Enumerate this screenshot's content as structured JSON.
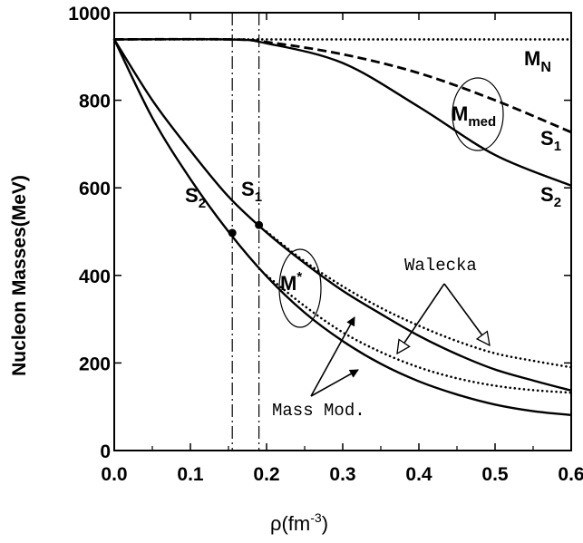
{
  "chart_data": {
    "type": "line",
    "title": "",
    "xlabel": "ρ(fm-3)",
    "xlabel_main": "ρ(fm",
    "xlabel_sup": "-3",
    "xlabel_close": ")",
    "ylabel": "Nucleon Masses(MeV)",
    "xlim": [
      0.0,
      0.6
    ],
    "ylim": [
      0,
      1000
    ],
    "xticks": [
      "0.0",
      "0.1",
      "0.2",
      "0.3",
      "0.4",
      "0.5",
      "0.6"
    ],
    "yticks": [
      "0",
      "200",
      "400",
      "600",
      "800",
      "1000"
    ],
    "grid": false,
    "vertical_lines": [
      0.155,
      0.19
    ],
    "series": [
      {
        "name": "",
        "style": "dotted",
        "x": [
          0.0,
          0.6
        ],
        "y": [
          939,
          939
        ]
      },
      {
        "name": "",
        "style": "dashed",
        "x": [
          0.0,
          0.15,
          0.2,
          0.3,
          0.4,
          0.5,
          0.6
        ],
        "y": [
          939,
          939,
          933,
          905,
          862,
          800,
          727
        ]
      },
      {
        "name": "",
        "style": "solid",
        "x": [
          0.0,
          0.15,
          0.2,
          0.3,
          0.4,
          0.5,
          0.6
        ],
        "y": [
          939,
          939,
          930,
          885,
          785,
          675,
          605
        ]
      },
      {
        "name": "",
        "style": "solid",
        "x": [
          0.0,
          0.05,
          0.1,
          0.15,
          0.2,
          0.25,
          0.3,
          0.35,
          0.4,
          0.45,
          0.5,
          0.55,
          0.6
        ],
        "y": [
          939,
          800,
          685,
          580,
          498,
          428,
          365,
          312,
          262,
          220,
          185,
          160,
          137
        ]
      },
      {
        "name": "",
        "style": "solid",
        "x": [
          0.0,
          0.05,
          0.1,
          0.15,
          0.2,
          0.25,
          0.3,
          0.35,
          0.4,
          0.45,
          0.5,
          0.55,
          0.6
        ],
        "y": [
          939,
          760,
          620,
          500,
          398,
          315,
          250,
          198,
          158,
          128,
          105,
          90,
          81
        ]
      },
      {
        "name": "",
        "style": "dotted",
        "x": [
          0.2,
          0.25,
          0.3,
          0.35,
          0.4,
          0.45,
          0.5,
          0.55,
          0.6
        ],
        "y": [
          500,
          432,
          375,
          326,
          285,
          250,
          222,
          205,
          190
        ]
      },
      {
        "name": "",
        "style": "dotted",
        "x": [
          0.2,
          0.25,
          0.3,
          0.35,
          0.4,
          0.45,
          0.5,
          0.55,
          0.6
        ],
        "y": [
          400,
          330,
          270,
          225,
          190,
          165,
          148,
          138,
          132
        ]
      }
    ],
    "points": [
      {
        "x": 0.155,
        "y": 497
      },
      {
        "x": 0.19,
        "y": 515
      }
    ],
    "annotations": {
      "mn_main": "M",
      "mn_sub": "N",
      "mmed_main": "M",
      "mmed_sub": "med",
      "mstar_main": "M",
      "mstar_sup": "*",
      "s": "S",
      "one": "1",
      "two": "2",
      "walecka": "Walecka",
      "massmod": "Mass Mod."
    }
  }
}
